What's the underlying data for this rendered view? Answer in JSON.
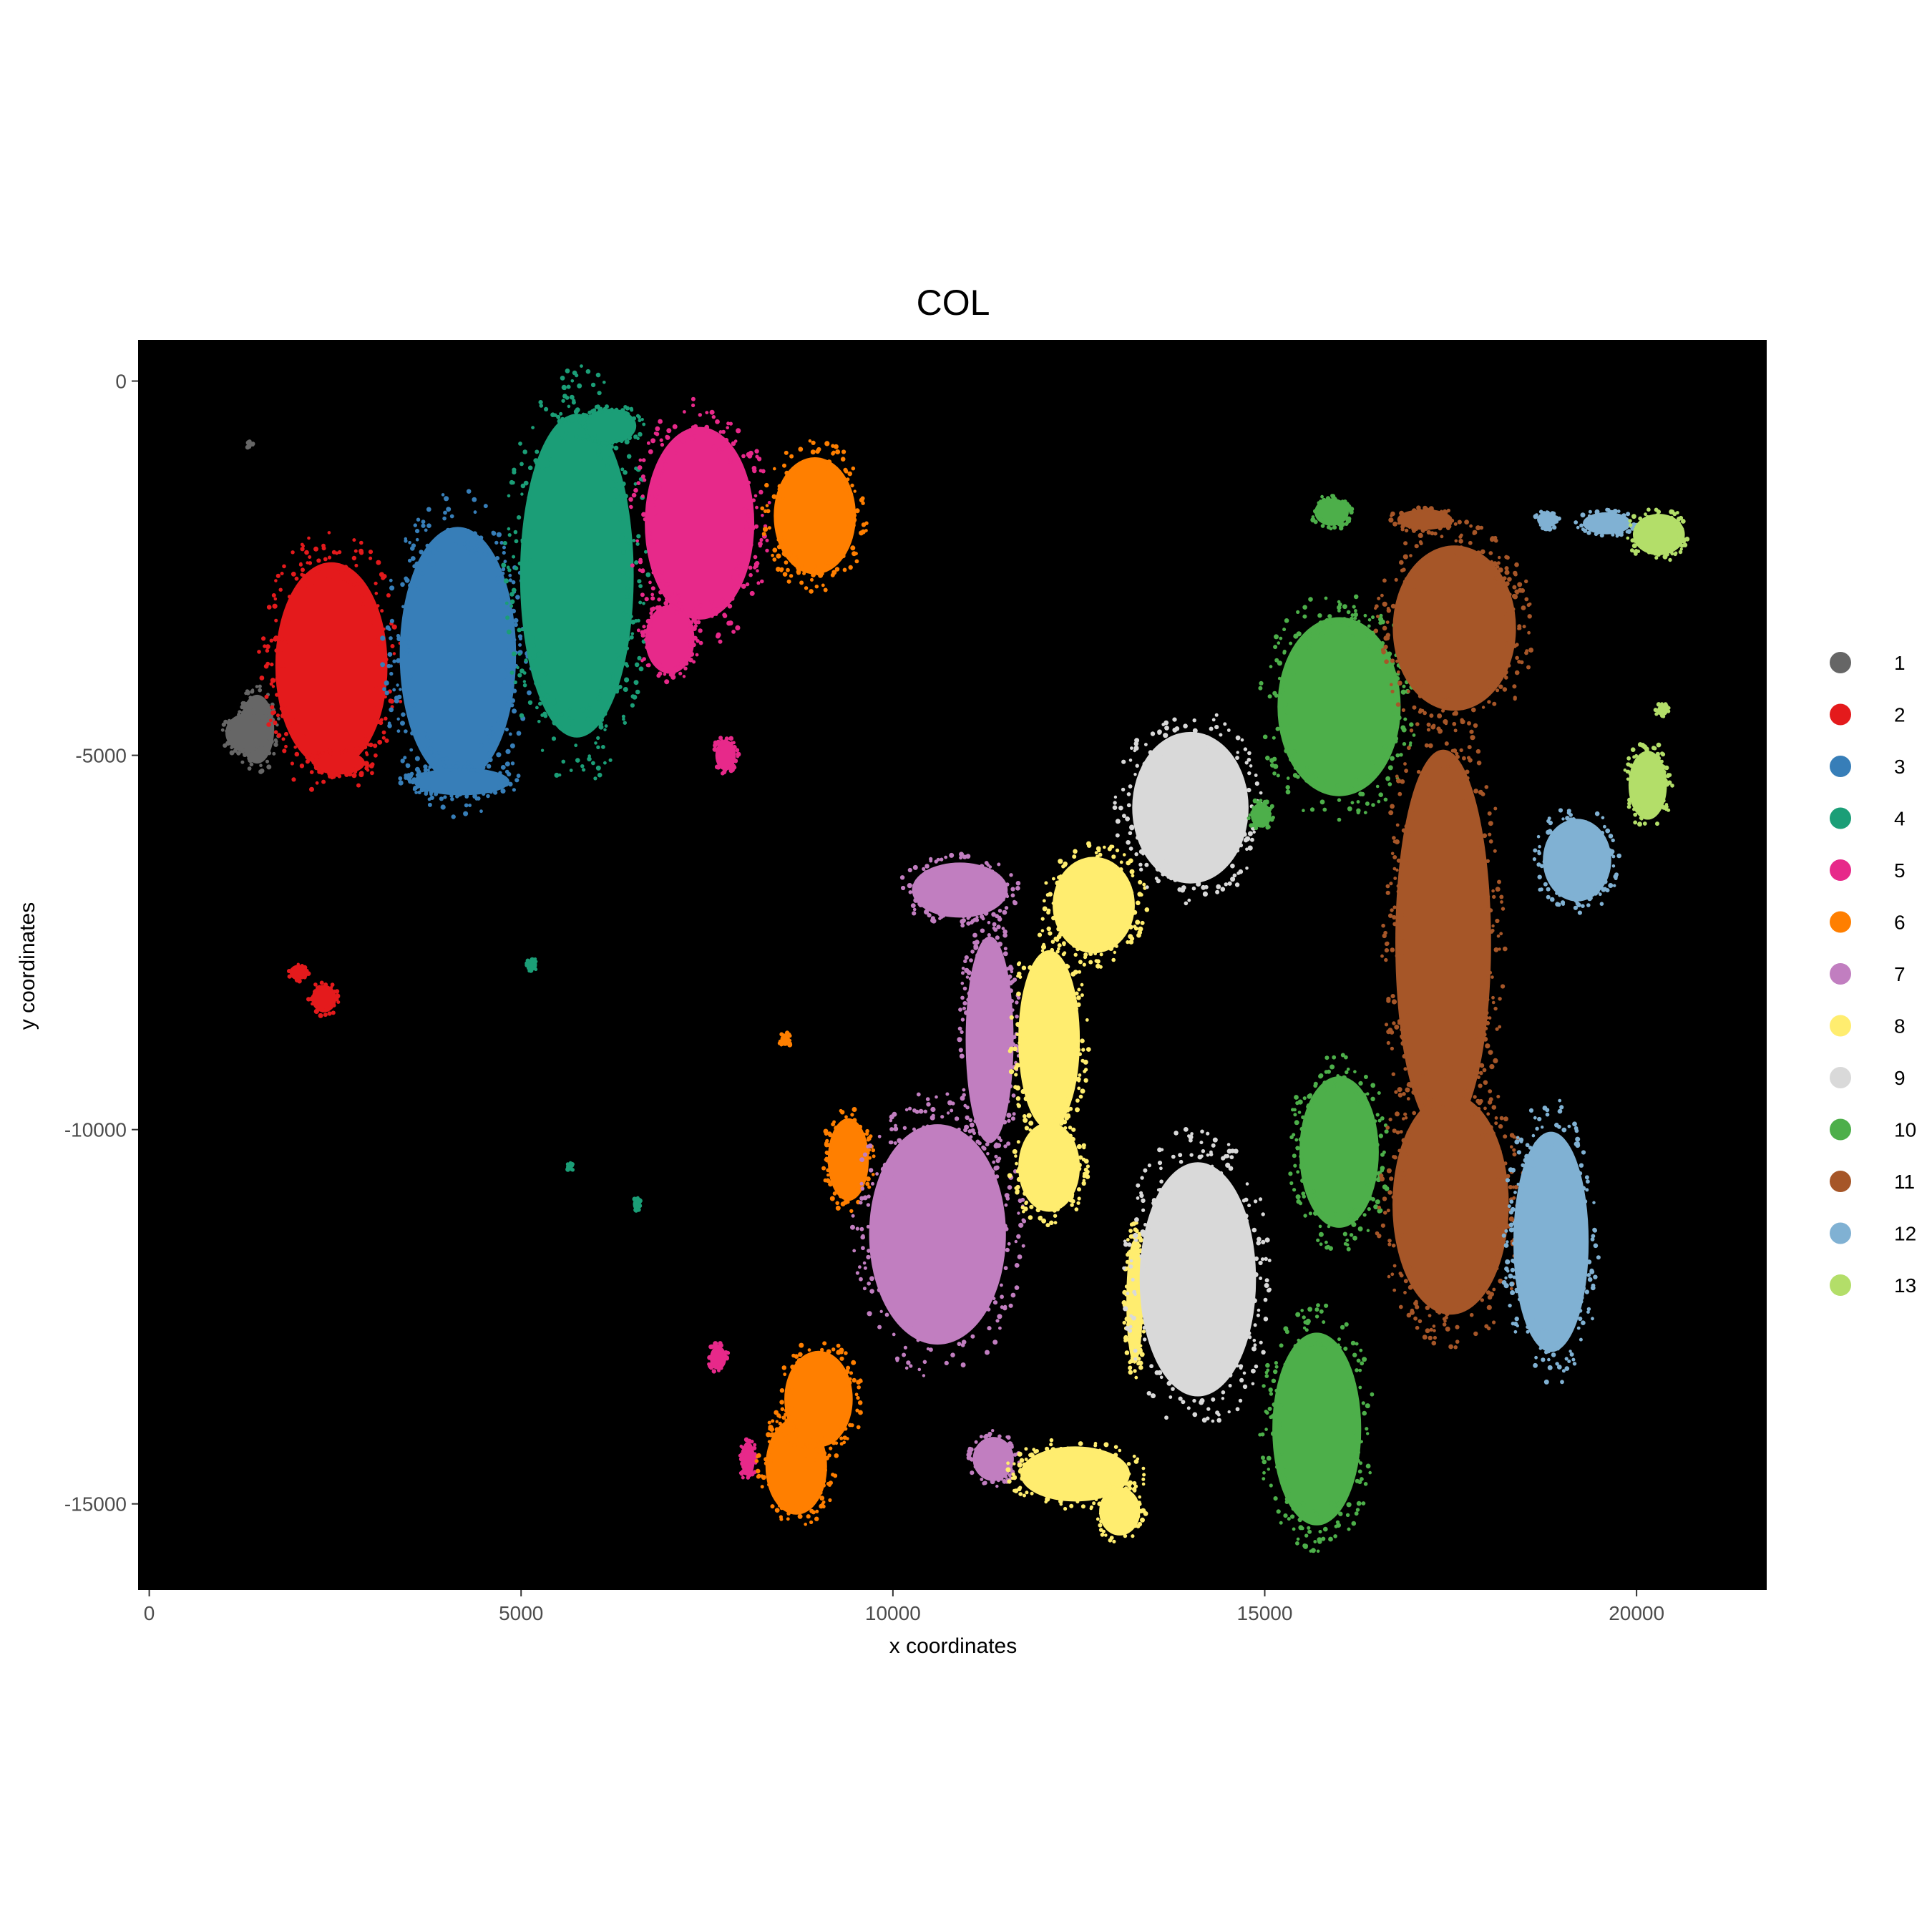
{
  "chart_data": {
    "type": "scatter",
    "title": "COL",
    "xlabel": "x coordinates",
    "ylabel": "y coordinates",
    "xlim": [
      -150,
      21750
    ],
    "ylim": [
      -16150,
      550
    ],
    "x_ticks": [
      0,
      5000,
      10000,
      15000,
      20000
    ],
    "x_tick_labels": [
      "0",
      "5000",
      "10000",
      "15000",
      "20000"
    ],
    "y_ticks": [
      0,
      -5000,
      -10000,
      -15000
    ],
    "y_tick_labels": [
      "0",
      "-5000",
      "-10000",
      "-15000"
    ],
    "panel_background": "#000000",
    "grid": false,
    "legend_position": "right",
    "series": [
      {
        "name": "1",
        "color": "#666666",
        "regions": [
          {
            "cx": 1450,
            "cy": -4650,
            "rx": 250,
            "ry": 500
          },
          {
            "cx": 1300,
            "cy": -4700,
            "rx": 300,
            "ry": 280
          },
          {
            "cx": 1350,
            "cy": -850,
            "rx": 40,
            "ry": 40
          }
        ]
      },
      {
        "name": "2",
        "color": "#E41A1C",
        "regions": [
          {
            "cx": 2450,
            "cy": -3800,
            "rx": 820,
            "ry": 1500
          },
          {
            "cx": 2550,
            "cy": -5100,
            "rx": 380,
            "ry": 170
          },
          {
            "cx": 2350,
            "cy": -8250,
            "rx": 180,
            "ry": 200
          },
          {
            "cx": 2000,
            "cy": -7900,
            "rx": 120,
            "ry": 110
          }
        ]
      },
      {
        "name": "3",
        "color": "#377EB8",
        "regions": [
          {
            "cx": 4150,
            "cy": -3650,
            "rx": 850,
            "ry": 1850
          },
          {
            "cx": 4200,
            "cy": -5350,
            "rx": 700,
            "ry": 200
          }
        ]
      },
      {
        "name": "4",
        "color": "#1B9E77",
        "regions": [
          {
            "cx": 5750,
            "cy": -2600,
            "rx": 830,
            "ry": 2350
          },
          {
            "cx": 6200,
            "cy": -600,
            "rx": 380,
            "ry": 250
          },
          {
            "cx": 5150,
            "cy": -7800,
            "rx": 70,
            "ry": 80
          },
          {
            "cx": 5650,
            "cy": -10500,
            "rx": 50,
            "ry": 50
          },
          {
            "cx": 6550,
            "cy": -11000,
            "rx": 50,
            "ry": 80
          }
        ]
      },
      {
        "name": "5",
        "color": "#E7298A",
        "regions": [
          {
            "cx": 7400,
            "cy": -1900,
            "rx": 800,
            "ry": 1400
          },
          {
            "cx": 7000,
            "cy": -3450,
            "rx": 360,
            "ry": 500
          },
          {
            "cx": 7750,
            "cy": -5000,
            "rx": 150,
            "ry": 220
          },
          {
            "cx": 8050,
            "cy": -14400,
            "rx": 100,
            "ry": 250
          },
          {
            "cx": 7650,
            "cy": -13050,
            "rx": 120,
            "ry": 170
          }
        ]
      },
      {
        "name": "6",
        "color": "#FF7F00",
        "regions": [
          {
            "cx": 8950,
            "cy": -1800,
            "rx": 600,
            "ry": 850
          },
          {
            "cx": 8700,
            "cy": -14500,
            "rx": 450,
            "ry": 700
          },
          {
            "cx": 9000,
            "cy": -13600,
            "rx": 500,
            "ry": 700
          },
          {
            "cx": 9400,
            "cy": -10400,
            "rx": 300,
            "ry": 600
          },
          {
            "cx": 8550,
            "cy": -8800,
            "rx": 70,
            "ry": 90
          }
        ]
      },
      {
        "name": "7",
        "color": "#C17EC0",
        "regions": [
          {
            "cx": 10600,
            "cy": -11400,
            "rx": 1000,
            "ry": 1600
          },
          {
            "cx": 10900,
            "cy": -6800,
            "rx": 700,
            "ry": 400
          },
          {
            "cx": 11300,
            "cy": -8800,
            "rx": 350,
            "ry": 1500
          },
          {
            "cx": 11350,
            "cy": -14400,
            "rx": 300,
            "ry": 320
          }
        ]
      },
      {
        "name": "8",
        "color": "#FFED6F",
        "regions": [
          {
            "cx": 12100,
            "cy": -8800,
            "rx": 450,
            "ry": 1300
          },
          {
            "cx": 12700,
            "cy": -7000,
            "rx": 600,
            "ry": 700
          },
          {
            "cx": 12100,
            "cy": -10500,
            "rx": 450,
            "ry": 650
          },
          {
            "cx": 12450,
            "cy": -14600,
            "rx": 800,
            "ry": 400
          },
          {
            "cx": 13050,
            "cy": -15100,
            "rx": 300,
            "ry": 350
          },
          {
            "cx": 13250,
            "cy": -12300,
            "rx": 120,
            "ry": 900
          }
        ]
      },
      {
        "name": "9",
        "color": "#D9D9D9",
        "regions": [
          {
            "cx": 14000,
            "cy": -5700,
            "rx": 850,
            "ry": 1100
          },
          {
            "cx": 14100,
            "cy": -12000,
            "rx": 850,
            "ry": 1700
          }
        ]
      },
      {
        "name": "10",
        "color": "#4DAF4A",
        "regions": [
          {
            "cx": 16000,
            "cy": -4350,
            "rx": 900,
            "ry": 1300
          },
          {
            "cx": 15900,
            "cy": -1750,
            "rx": 250,
            "ry": 200
          },
          {
            "cx": 16000,
            "cy": -10300,
            "rx": 580,
            "ry": 1100
          },
          {
            "cx": 15700,
            "cy": -14000,
            "rx": 650,
            "ry": 1400
          },
          {
            "cx": 14950,
            "cy": -5800,
            "rx": 150,
            "ry": 180
          }
        ]
      },
      {
        "name": "11",
        "color": "#A65628",
        "regions": [
          {
            "cx": 17550,
            "cy": -3300,
            "rx": 900,
            "ry": 1200
          },
          {
            "cx": 17400,
            "cy": -7500,
            "rx": 700,
            "ry": 2800
          },
          {
            "cx": 17500,
            "cy": -11000,
            "rx": 850,
            "ry": 1600
          },
          {
            "cx": 17150,
            "cy": -1850,
            "rx": 400,
            "ry": 150
          }
        ]
      },
      {
        "name": "12",
        "color": "#80B1D3",
        "regions": [
          {
            "cx": 18850,
            "cy": -11500,
            "rx": 550,
            "ry": 1600
          },
          {
            "cx": 19200,
            "cy": -6400,
            "rx": 500,
            "ry": 600
          },
          {
            "cx": 19600,
            "cy": -1900,
            "rx": 350,
            "ry": 160
          },
          {
            "cx": 18800,
            "cy": -1850,
            "rx": 150,
            "ry": 110
          }
        ]
      },
      {
        "name": "13",
        "color": "#B3DE69",
        "regions": [
          {
            "cx": 20300,
            "cy": -2050,
            "rx": 380,
            "ry": 300
          },
          {
            "cx": 20150,
            "cy": -5400,
            "rx": 280,
            "ry": 500
          },
          {
            "cx": 20350,
            "cy": -4400,
            "rx": 80,
            "ry": 80
          }
        ]
      }
    ]
  }
}
